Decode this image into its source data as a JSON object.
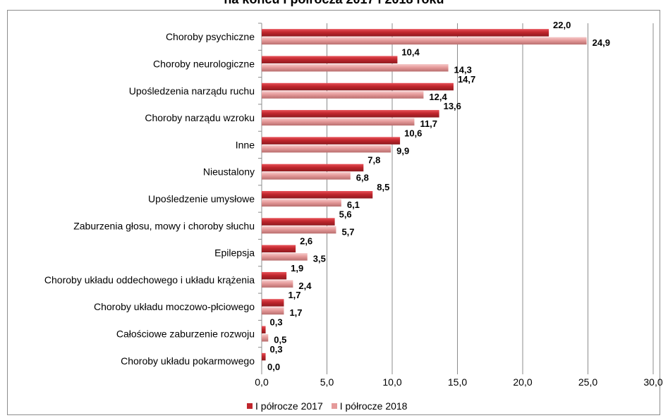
{
  "chart_data": {
    "type": "bar",
    "orientation": "horizontal",
    "title": "na końcu I półrocza 2017 i 2018 roku",
    "categories": [
      "Choroby psychiczne",
      "Choroby neurologiczne",
      "Upośledzenia narządu ruchu",
      "Choroby narządu wzroku",
      "Inne",
      "Nieustalony",
      "Upośledzenie umysłowe",
      "Zaburzenia głosu, mowy i choroby słuchu",
      "Epilepsja",
      "Choroby układu oddechowego i układu krążenia",
      "Choroby układu moczowo-płciowego",
      "Całościowe zaburzenie rozwoju",
      "Choroby układu pokarmowego"
    ],
    "series": [
      {
        "name": "I półrocze 2017",
        "color": "#c0262d",
        "values": [
          22.0,
          10.4,
          14.7,
          13.6,
          10.6,
          7.8,
          8.5,
          5.6,
          2.6,
          1.9,
          1.7,
          0.3,
          0.3
        ],
        "labels": [
          "22,0",
          "10,4",
          "14,7",
          "13,6",
          "10,6",
          "7,8",
          "8,5",
          "5,6",
          "2,6",
          "1,9",
          "1,7",
          "0,3",
          "0,3"
        ]
      },
      {
        "name": "I półrocze 2018",
        "color": "#e59a9a",
        "values": [
          24.9,
          14.3,
          12.4,
          11.7,
          9.9,
          6.8,
          6.1,
          5.7,
          3.5,
          2.4,
          1.7,
          0.5,
          0.0
        ],
        "labels": [
          "24,9",
          "14,3",
          "12,4",
          "11,7",
          "9,9",
          "6,8",
          "6,1",
          "5,7",
          "3,5",
          "2,4",
          "1,7",
          "0,5",
          "0,0"
        ]
      }
    ],
    "xlim": [
      0,
      30
    ],
    "xticks": [
      0,
      5,
      10,
      15,
      20,
      25,
      30
    ],
    "xtick_labels": [
      "0,0",
      "5,0",
      "10,0",
      "15,0",
      "20,0",
      "25,0",
      "30,0"
    ],
    "grid": true,
    "legend_position": "bottom"
  }
}
